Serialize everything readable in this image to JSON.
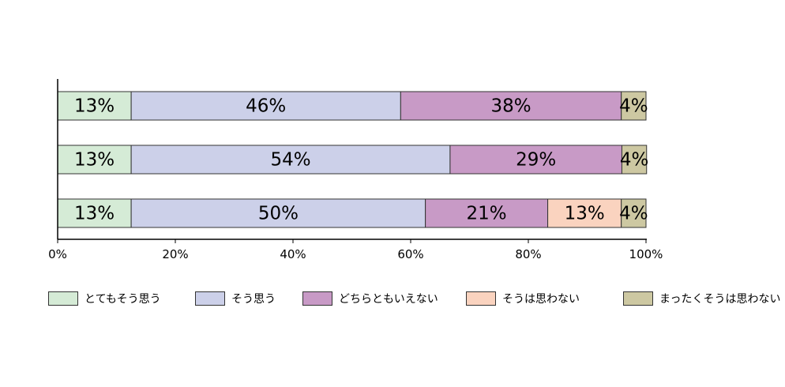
{
  "chart_data": {
    "type": "bar",
    "orientation": "horizontal",
    "stacked": true,
    "categories": [
      "",
      "",
      ""
    ],
    "series": [
      {
        "name": "とてもそう思う",
        "color": "#d5ebd6",
        "values": [
          12.5,
          12.5,
          12.5
        ],
        "labels": [
          "13%",
          "13%",
          "13%"
        ]
      },
      {
        "name": "そう思う",
        "color": "#ccd0e9",
        "values": [
          45.8,
          54.2,
          50.0
        ],
        "labels": [
          "46%",
          "54%",
          "50%"
        ]
      },
      {
        "name": "どちらともいえない",
        "color": "#c89ac6",
        "values": [
          37.5,
          29.2,
          20.8
        ],
        "labels": [
          "38%",
          "29%",
          "21%"
        ]
      },
      {
        "name": "そうは思わない",
        "color": "#fad3bf",
        "values": [
          0,
          0,
          12.5
        ],
        "labels": [
          "",
          "",
          "13%"
        ]
      },
      {
        "name": "まったくそうは思わない",
        "color": "#cdc8a2",
        "values": [
          4.2,
          4.2,
          4.2
        ],
        "labels": [
          "4%",
          "4%",
          "4%"
        ]
      }
    ],
    "xlim": [
      0,
      100
    ],
    "x_ticks": [
      "0%",
      "20%",
      "40%",
      "60%",
      "80%",
      "100%"
    ],
    "grid": false,
    "legend_position": "bottom"
  }
}
